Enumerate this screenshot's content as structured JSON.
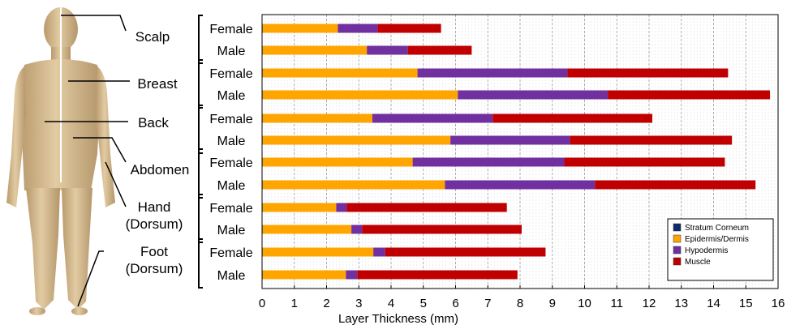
{
  "chart_data": {
    "type": "bar",
    "orientation": "horizontal",
    "stacked": true,
    "xlabel": "Layer Thickness (mm)",
    "xlim": [
      0,
      16
    ],
    "xticks": [
      0,
      1,
      2,
      3,
      4,
      5,
      6,
      7,
      8,
      9,
      10,
      11,
      12,
      13,
      14,
      15,
      16
    ],
    "grid": true,
    "legend_position": "bottom-right",
    "groups": [
      {
        "region": "Scalp",
        "categories": [
          "Female",
          "Male"
        ]
      },
      {
        "region": "Breast",
        "categories": [
          "Female",
          "Male"
        ]
      },
      {
        "region": "Back",
        "categories": [
          "Female",
          "Male"
        ]
      },
      {
        "region": "Abdomen",
        "categories": [
          "Female",
          "Male"
        ]
      },
      {
        "region": "Hand (Dorsum)",
        "categories": [
          "Female",
          "Male"
        ]
      },
      {
        "region": "Foot (Dorsum)",
        "categories": [
          "Female",
          "Male"
        ]
      }
    ],
    "region_labels": [
      [
        "Scalp"
      ],
      [
        "Breast"
      ],
      [
        "Back"
      ],
      [
        "Abdomen"
      ],
      [
        "Hand",
        "(Dorsum)"
      ],
      [
        "Foot",
        "(Dorsum)"
      ]
    ],
    "series": [
      {
        "name": "Stratum Corneum",
        "color": "#0d2a6b",
        "values": [
          0.02,
          0.02,
          0.02,
          0.02,
          0.02,
          0.02,
          0.02,
          0.02,
          0.02,
          0.02,
          0.02,
          0.02
        ]
      },
      {
        "name": "Epidermis/Dermis",
        "color": "#ffa500",
        "values": [
          2.33,
          3.23,
          4.8,
          6.05,
          3.4,
          5.82,
          4.65,
          5.65,
          2.28,
          2.75,
          3.43,
          2.58
        ]
      },
      {
        "name": "Hypodermis",
        "color": "#7030a0",
        "values": [
          1.23,
          1.27,
          4.65,
          4.65,
          3.73,
          3.71,
          4.7,
          4.65,
          0.32,
          0.33,
          0.37,
          0.35
        ]
      },
      {
        "name": "Muscle",
        "color": "#c00000",
        "values": [
          1.97,
          1.98,
          4.98,
          5.03,
          4.95,
          5.02,
          4.98,
          4.98,
          4.97,
          4.95,
          4.97,
          4.97
        ]
      }
    ]
  }
}
